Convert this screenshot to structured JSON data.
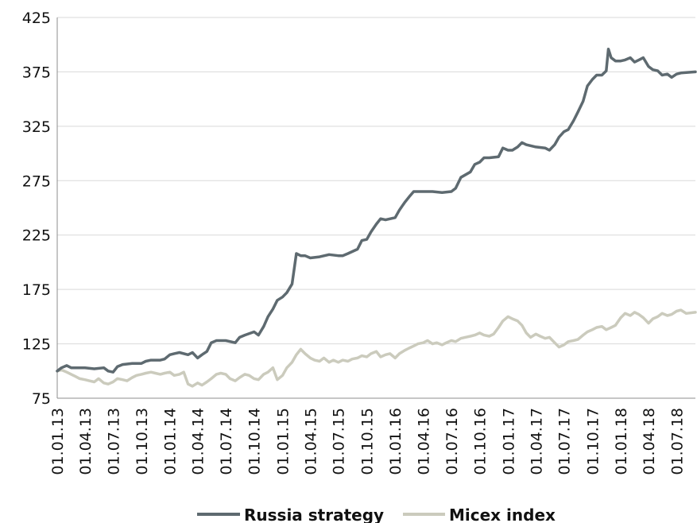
{
  "chart_data": {
    "type": "line",
    "title": "",
    "xlabel": "",
    "ylabel": "",
    "ylim": [
      75,
      425
    ],
    "yticks": [
      75,
      125,
      175,
      225,
      275,
      325,
      375,
      425
    ],
    "xlim": [
      "01.01.13",
      "31.08.18"
    ],
    "xticks": [
      "01.01.13",
      "01.04.13",
      "01.07.13",
      "01.10.13",
      "01.01.14",
      "01.04.14",
      "01.07.14",
      "01.10.14",
      "01.01.15",
      "01.04.15",
      "01.07.15",
      "01.10.15",
      "01.01.16",
      "01.04.16",
      "01.07.16",
      "01.10.16",
      "01.01.17",
      "01.04.17",
      "01.07.17",
      "01.10.17",
      "01.01.18",
      "01.04.18",
      "01.07.18"
    ],
    "grid": true,
    "legend_position": "bottom",
    "series": [
      {
        "name": "Russia strategy",
        "color": "#5e6a70",
        "points": [
          [
            "01.01.13",
            100
          ],
          [
            "15.01.13",
            103
          ],
          [
            "01.02.13",
            105
          ],
          [
            "15.02.13",
            103
          ],
          [
            "01.03.13",
            103
          ],
          [
            "01.04.13",
            103
          ],
          [
            "01.05.13",
            102
          ],
          [
            "01.06.13",
            103
          ],
          [
            "15.06.13",
            100
          ],
          [
            "01.07.13",
            99
          ],
          [
            "15.07.13",
            104
          ],
          [
            "01.08.13",
            106
          ],
          [
            "01.09.13",
            107
          ],
          [
            "01.10.13",
            107
          ],
          [
            "15.10.13",
            109
          ],
          [
            "01.11.13",
            110
          ],
          [
            "01.12.13",
            110
          ],
          [
            "15.12.13",
            111
          ],
          [
            "01.01.14",
            115
          ],
          [
            "15.01.14",
            116
          ],
          [
            "01.02.14",
            117
          ],
          [
            "01.03.14",
            115
          ],
          [
            "15.03.14",
            117
          ],
          [
            "01.04.14",
            112
          ],
          [
            "15.04.14",
            115
          ],
          [
            "01.05.14",
            118
          ],
          [
            "15.05.14",
            126
          ],
          [
            "01.06.14",
            128
          ],
          [
            "01.07.14",
            128
          ],
          [
            "01.08.14",
            126
          ],
          [
            "15.08.14",
            131
          ],
          [
            "01.09.14",
            133
          ],
          [
            "01.10.14",
            136
          ],
          [
            "15.10.14",
            133
          ],
          [
            "01.11.14",
            141
          ],
          [
            "15.11.14",
            150
          ],
          [
            "01.12.14",
            157
          ],
          [
            "15.12.14",
            165
          ],
          [
            "01.01.15",
            168
          ],
          [
            "15.01.15",
            172
          ],
          [
            "01.02.15",
            180
          ],
          [
            "15.02.15",
            208
          ],
          [
            "01.03.15",
            206
          ],
          [
            "15.03.15",
            206
          ],
          [
            "01.04.15",
            204
          ],
          [
            "01.05.15",
            205
          ],
          [
            "01.06.15",
            207
          ],
          [
            "01.07.15",
            206
          ],
          [
            "15.07.15",
            206
          ],
          [
            "01.08.15",
            208
          ],
          [
            "01.09.15",
            212
          ],
          [
            "15.09.15",
            220
          ],
          [
            "01.10.15",
            221
          ],
          [
            "15.10.15",
            228
          ],
          [
            "01.11.15",
            235
          ],
          [
            "15.11.15",
            240
          ],
          [
            "01.12.15",
            239
          ],
          [
            "01.01.16",
            241
          ],
          [
            "15.01.16",
            248
          ],
          [
            "01.02.16",
            255
          ],
          [
            "15.02.16",
            260
          ],
          [
            "01.03.16",
            265
          ],
          [
            "01.04.16",
            265
          ],
          [
            "01.05.16",
            265
          ],
          [
            "01.06.16",
            264
          ],
          [
            "01.07.16",
            265
          ],
          [
            "15.07.16",
            268
          ],
          [
            "01.08.16",
            278
          ],
          [
            "01.09.16",
            283
          ],
          [
            "15.09.16",
            290
          ],
          [
            "01.10.16",
            292
          ],
          [
            "15.10.16",
            296
          ],
          [
            "01.11.16",
            296
          ],
          [
            "01.12.16",
            297
          ],
          [
            "15.12.16",
            305
          ],
          [
            "01.01.17",
            303
          ],
          [
            "15.01.17",
            303
          ],
          [
            "01.02.17",
            306
          ],
          [
            "15.02.17",
            310
          ],
          [
            "01.03.17",
            308
          ],
          [
            "01.04.17",
            306
          ],
          [
            "01.05.17",
            305
          ],
          [
            "15.05.17",
            303
          ],
          [
            "01.06.17",
            308
          ],
          [
            "15.06.17",
            315
          ],
          [
            "01.07.17",
            320
          ],
          [
            "15.07.17",
            322
          ],
          [
            "01.08.17",
            330
          ],
          [
            "15.08.17",
            338
          ],
          [
            "01.09.17",
            348
          ],
          [
            "15.09.17",
            362
          ],
          [
            "01.10.17",
            368
          ],
          [
            "15.10.17",
            372
          ],
          [
            "01.11.17",
            372
          ],
          [
            "15.11.17",
            376
          ],
          [
            "22.11.17",
            396
          ],
          [
            "01.12.17",
            388
          ],
          [
            "15.12.17",
            385
          ],
          [
            "01.01.18",
            385
          ],
          [
            "15.01.18",
            386
          ],
          [
            "01.02.18",
            388
          ],
          [
            "15.02.18",
            384
          ],
          [
            "01.03.18",
            386
          ],
          [
            "15.03.18",
            388
          ],
          [
            "01.04.18",
            380
          ],
          [
            "15.04.18",
            377
          ],
          [
            "01.05.18",
            376
          ],
          [
            "15.05.18",
            372
          ],
          [
            "01.06.18",
            373
          ],
          [
            "15.06.18",
            370
          ],
          [
            "01.07.18",
            373
          ],
          [
            "15.07.18",
            374
          ],
          [
            "31.08.18",
            375
          ]
        ]
      },
      {
        "name": "Micex index",
        "color": "#cbcbbd",
        "points": [
          [
            "01.01.13",
            100
          ],
          [
            "15.01.13",
            101
          ],
          [
            "01.02.13",
            99
          ],
          [
            "15.02.13",
            97
          ],
          [
            "01.03.13",
            95
          ],
          [
            "15.03.13",
            93
          ],
          [
            "01.04.13",
            92
          ],
          [
            "15.04.13",
            91
          ],
          [
            "01.05.13",
            90
          ],
          [
            "15.05.13",
            93
          ],
          [
            "01.06.13",
            89
          ],
          [
            "15.06.13",
            88
          ],
          [
            "01.07.13",
            90
          ],
          [
            "15.07.13",
            93
          ],
          [
            "01.08.13",
            92
          ],
          [
            "15.08.13",
            91
          ],
          [
            "01.09.13",
            94
          ],
          [
            "15.09.13",
            96
          ],
          [
            "01.10.13",
            97
          ],
          [
            "15.10.13",
            98
          ],
          [
            "01.11.13",
            99
          ],
          [
            "15.11.13",
            98
          ],
          [
            "01.12.13",
            97
          ],
          [
            "15.12.13",
            98
          ],
          [
            "01.01.14",
            99
          ],
          [
            "15.01.14",
            96
          ],
          [
            "01.02.14",
            97
          ],
          [
            "15.02.14",
            99
          ],
          [
            "01.03.14",
            88
          ],
          [
            "15.03.14",
            86
          ],
          [
            "01.04.14",
            89
          ],
          [
            "15.04.14",
            87
          ],
          [
            "01.05.14",
            90
          ],
          [
            "15.05.14",
            93
          ],
          [
            "01.06.14",
            97
          ],
          [
            "15.06.14",
            98
          ],
          [
            "01.07.14",
            97
          ],
          [
            "15.07.14",
            93
          ],
          [
            "01.08.14",
            91
          ],
          [
            "15.08.14",
            94
          ],
          [
            "01.09.14",
            97
          ],
          [
            "15.09.14",
            96
          ],
          [
            "01.10.14",
            93
          ],
          [
            "15.10.14",
            92
          ],
          [
            "01.11.14",
            97
          ],
          [
            "15.11.14",
            99
          ],
          [
            "01.12.14",
            103
          ],
          [
            "15.12.14",
            92
          ],
          [
            "01.01.15",
            96
          ],
          [
            "15.01.15",
            103
          ],
          [
            "01.02.15",
            108
          ],
          [
            "15.02.15",
            115
          ],
          [
            "01.03.15",
            120
          ],
          [
            "15.03.15",
            116
          ],
          [
            "01.04.15",
            112
          ],
          [
            "15.04.15",
            110
          ],
          [
            "01.05.15",
            109
          ],
          [
            "15.05.15",
            112
          ],
          [
            "01.06.15",
            108
          ],
          [
            "15.06.15",
            110
          ],
          [
            "01.07.15",
            108
          ],
          [
            "15.07.15",
            110
          ],
          [
            "01.08.15",
            109
          ],
          [
            "15.08.15",
            111
          ],
          [
            "01.09.15",
            112
          ],
          [
            "15.09.15",
            114
          ],
          [
            "01.10.15",
            113
          ],
          [
            "15.10.15",
            116
          ],
          [
            "01.11.15",
            118
          ],
          [
            "15.11.15",
            113
          ],
          [
            "01.12.15",
            115
          ],
          [
            "15.12.15",
            116
          ],
          [
            "01.01.16",
            112
          ],
          [
            "15.01.16",
            116
          ],
          [
            "01.02.16",
            119
          ],
          [
            "15.02.16",
            121
          ],
          [
            "01.03.16",
            123
          ],
          [
            "15.03.16",
            125
          ],
          [
            "01.04.16",
            126
          ],
          [
            "15.04.16",
            128
          ],
          [
            "01.05.16",
            125
          ],
          [
            "15.05.16",
            126
          ],
          [
            "01.06.16",
            124
          ],
          [
            "15.06.16",
            126
          ],
          [
            "01.07.16",
            128
          ],
          [
            "15.07.16",
            127
          ],
          [
            "01.08.16",
            130
          ],
          [
            "15.08.16",
            131
          ],
          [
            "01.09.16",
            132
          ],
          [
            "15.09.16",
            133
          ],
          [
            "01.10.16",
            135
          ],
          [
            "15.10.16",
            133
          ],
          [
            "01.11.16",
            132
          ],
          [
            "15.11.16",
            134
          ],
          [
            "01.12.16",
            140
          ],
          [
            "15.12.16",
            146
          ],
          [
            "01.01.17",
            150
          ],
          [
            "15.01.17",
            148
          ],
          [
            "01.02.17",
            146
          ],
          [
            "15.02.17",
            142
          ],
          [
            "01.03.17",
            135
          ],
          [
            "15.03.17",
            131
          ],
          [
            "01.04.17",
            134
          ],
          [
            "15.04.17",
            132
          ],
          [
            "01.05.17",
            130
          ],
          [
            "15.05.17",
            131
          ],
          [
            "01.06.17",
            126
          ],
          [
            "15.06.17",
            122
          ],
          [
            "01.07.17",
            124
          ],
          [
            "15.07.17",
            127
          ],
          [
            "01.08.17",
            128
          ],
          [
            "15.08.17",
            129
          ],
          [
            "01.09.17",
            133
          ],
          [
            "15.09.17",
            136
          ],
          [
            "01.10.17",
            138
          ],
          [
            "15.10.17",
            140
          ],
          [
            "01.11.17",
            141
          ],
          [
            "15.11.17",
            138
          ],
          [
            "01.12.17",
            140
          ],
          [
            "15.12.17",
            142
          ],
          [
            "01.01.18",
            149
          ],
          [
            "15.01.18",
            153
          ],
          [
            "01.02.18",
            151
          ],
          [
            "15.02.18",
            154
          ],
          [
            "01.03.18",
            152
          ],
          [
            "15.03.18",
            149
          ],
          [
            "01.04.18",
            144
          ],
          [
            "15.04.18",
            148
          ],
          [
            "01.05.18",
            150
          ],
          [
            "15.05.18",
            153
          ],
          [
            "01.06.18",
            151
          ],
          [
            "15.06.18",
            152
          ],
          [
            "01.07.18",
            155
          ],
          [
            "15.07.18",
            156
          ],
          [
            "01.08.18",
            153
          ],
          [
            "31.08.18",
            154
          ]
        ]
      }
    ]
  }
}
